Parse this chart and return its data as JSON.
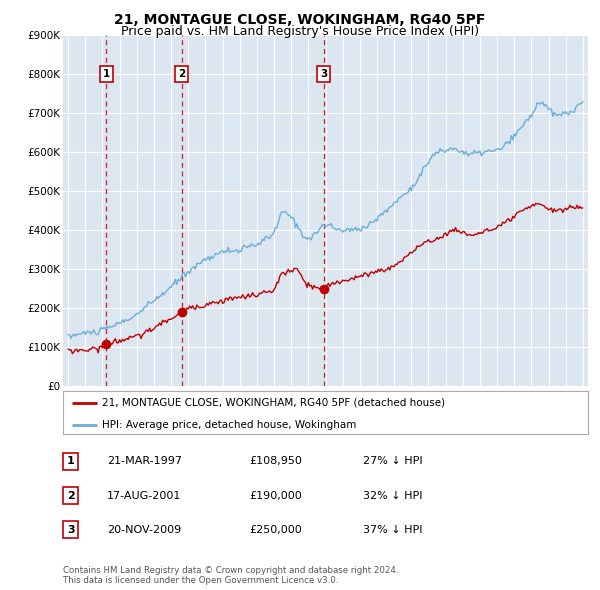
{
  "title": "21, MONTAGUE CLOSE, WOKINGHAM, RG40 5PF",
  "subtitle": "Price paid vs. HM Land Registry's House Price Index (HPI)",
  "ylim": [
    0,
    900000
  ],
  "yticks": [
    0,
    100000,
    200000,
    300000,
    400000,
    500000,
    600000,
    700000,
    800000,
    900000
  ],
  "ytick_labels": [
    "£0",
    "£100K",
    "£200K",
    "£300K",
    "£400K",
    "£500K",
    "£600K",
    "£700K",
    "£800K",
    "£900K"
  ],
  "background_color": "#ffffff",
  "plot_bg_color": "#dce6f1",
  "grid_color": "#ffffff",
  "hpi_color": "#6baed6",
  "price_color": "#c00000",
  "vline_color": "#c00000",
  "title_fontsize": 10,
  "subtitle_fontsize": 9,
  "transactions": [
    {
      "date_num": 1997.22,
      "price": 108950,
      "label": "1"
    },
    {
      "date_num": 2001.63,
      "price": 190000,
      "label": "2"
    },
    {
      "date_num": 2009.9,
      "price": 250000,
      "label": "3"
    }
  ],
  "transaction_table": [
    {
      "num": "1",
      "date": "21-MAR-1997",
      "price": "£108,950",
      "hpi": "27% ↓ HPI"
    },
    {
      "num": "2",
      "date": "17-AUG-2001",
      "price": "£190,000",
      "hpi": "32% ↓ HPI"
    },
    {
      "num": "3",
      "date": "20-NOV-2009",
      "price": "£250,000",
      "hpi": "37% ↓ HPI"
    }
  ],
  "legend_entries": [
    "21, MONTAGUE CLOSE, WOKINGHAM, RG40 5PF (detached house)",
    "HPI: Average price, detached house, Wokingham"
  ],
  "footer": "Contains HM Land Registry data © Crown copyright and database right 2024.\nThis data is licensed under the Open Government Licence v3.0.",
  "hpi_data_years": [
    1995.0,
    1995.08,
    1995.17,
    1995.25,
    1995.33,
    1995.42,
    1995.5,
    1995.58,
    1995.67,
    1995.75,
    1995.83,
    1995.92,
    1996.0,
    1996.08,
    1996.17,
    1996.25,
    1996.33,
    1996.42,
    1996.5,
    1996.58,
    1996.67,
    1996.75,
    1996.83,
    1996.92,
    1997.0,
    1997.08,
    1997.17,
    1997.25,
    1997.33,
    1997.42,
    1997.5,
    1997.58,
    1997.67,
    1997.75,
    1997.83,
    1997.92,
    1998.0,
    1998.08,
    1998.17,
    1998.25,
    1998.33,
    1998.42,
    1998.5,
    1998.58,
    1998.67,
    1998.75,
    1998.83,
    1998.92,
    1999.0,
    1999.08,
    1999.17,
    1999.25,
    1999.33,
    1999.42,
    1999.5,
    1999.58,
    1999.67,
    1999.75,
    1999.83,
    1999.92,
    2000.0,
    2000.08,
    2000.17,
    2000.25,
    2000.33,
    2000.42,
    2000.5,
    2000.58,
    2000.67,
    2000.75,
    2000.83,
    2000.92,
    2001.0,
    2001.08,
    2001.17,
    2001.25,
    2001.33,
    2001.42,
    2001.5,
    2001.58,
    2001.67,
    2001.75,
    2001.83,
    2001.92,
    2002.0,
    2002.08,
    2002.17,
    2002.25,
    2002.33,
    2002.42,
    2002.5,
    2002.58,
    2002.67,
    2002.75,
    2002.83,
    2002.92,
    2003.0,
    2003.08,
    2003.17,
    2003.25,
    2003.33,
    2003.42,
    2003.5,
    2003.58,
    2003.67,
    2003.75,
    2003.83,
    2003.92,
    2004.0,
    2004.08,
    2004.17,
    2004.25,
    2004.33,
    2004.42,
    2004.5,
    2004.58,
    2004.67,
    2004.75,
    2004.83,
    2004.92,
    2005.0,
    2005.08,
    2005.17,
    2005.25,
    2005.33,
    2005.42,
    2005.5,
    2005.58,
    2005.67,
    2005.75,
    2005.83,
    2005.92,
    2006.0,
    2006.08,
    2006.17,
    2006.25,
    2006.33,
    2006.42,
    2006.5,
    2006.58,
    2006.67,
    2006.75,
    2006.83,
    2006.92,
    2007.0,
    2007.08,
    2007.17,
    2007.25,
    2007.33,
    2007.42,
    2007.5,
    2007.58,
    2007.67,
    2007.75,
    2007.83,
    2007.92,
    2008.0,
    2008.08,
    2008.17,
    2008.25,
    2008.33,
    2008.42,
    2008.5,
    2008.58,
    2008.67,
    2008.75,
    2008.83,
    2008.92,
    2009.0,
    2009.08,
    2009.17,
    2009.25,
    2009.33,
    2009.42,
    2009.5,
    2009.58,
    2009.67,
    2009.75,
    2009.83,
    2009.92,
    2010.0,
    2010.08,
    2010.17,
    2010.25,
    2010.33,
    2010.42,
    2010.5,
    2010.58,
    2010.67,
    2010.75,
    2010.83,
    2010.92,
    2011.0,
    2011.08,
    2011.17,
    2011.25,
    2011.33,
    2011.42,
    2011.5,
    2011.58,
    2011.67,
    2011.75,
    2011.83,
    2011.92,
    2012.0,
    2012.08,
    2012.17,
    2012.25,
    2012.33,
    2012.42,
    2012.5,
    2012.58,
    2012.67,
    2012.75,
    2012.83,
    2012.92,
    2013.0,
    2013.08,
    2013.17,
    2013.25,
    2013.33,
    2013.42,
    2013.5,
    2013.58,
    2013.67,
    2013.75,
    2013.83,
    2013.92,
    2014.0,
    2014.08,
    2014.17,
    2014.25,
    2014.33,
    2014.42,
    2014.5,
    2014.58,
    2014.67,
    2014.75,
    2014.83,
    2014.92,
    2015.0,
    2015.08,
    2015.17,
    2015.25,
    2015.33,
    2015.42,
    2015.5,
    2015.58,
    2015.67,
    2015.75,
    2015.83,
    2015.92,
    2016.0,
    2016.08,
    2016.17,
    2016.25,
    2016.33,
    2016.42,
    2016.5,
    2016.58,
    2016.67,
    2016.75,
    2016.83,
    2016.92,
    2017.0,
    2017.08,
    2017.17,
    2017.25,
    2017.33,
    2017.42,
    2017.5,
    2017.58,
    2017.67,
    2017.75,
    2017.83,
    2017.92,
    2018.0,
    2018.08,
    2018.17,
    2018.25,
    2018.33,
    2018.42,
    2018.5,
    2018.58,
    2018.67,
    2018.75,
    2018.83,
    2018.92,
    2019.0,
    2019.08,
    2019.17,
    2019.25,
    2019.33,
    2019.42,
    2019.5,
    2019.58,
    2019.67,
    2019.75,
    2019.83,
    2019.92,
    2020.0,
    2020.08,
    2020.17,
    2020.25,
    2020.33,
    2020.42,
    2020.5,
    2020.58,
    2020.67,
    2020.75,
    2020.83,
    2020.92,
    2021.0,
    2021.08,
    2021.17,
    2021.25,
    2021.33,
    2021.42,
    2021.5,
    2021.58,
    2021.67,
    2021.75,
    2021.83,
    2021.92,
    2022.0,
    2022.08,
    2022.17,
    2022.25,
    2022.33,
    2022.42,
    2022.5,
    2022.58,
    2022.67,
    2022.75,
    2022.83,
    2022.92,
    2023.0,
    2023.08,
    2023.17,
    2023.25,
    2023.33,
    2023.42,
    2023.5,
    2023.58,
    2023.67,
    2023.75,
    2023.83,
    2023.92,
    2024.0,
    2024.08,
    2024.17,
    2024.25,
    2024.33,
    2024.42,
    2024.5,
    2024.58,
    2024.67,
    2024.75,
    2024.83,
    2024.92,
    2025.0
  ]
}
